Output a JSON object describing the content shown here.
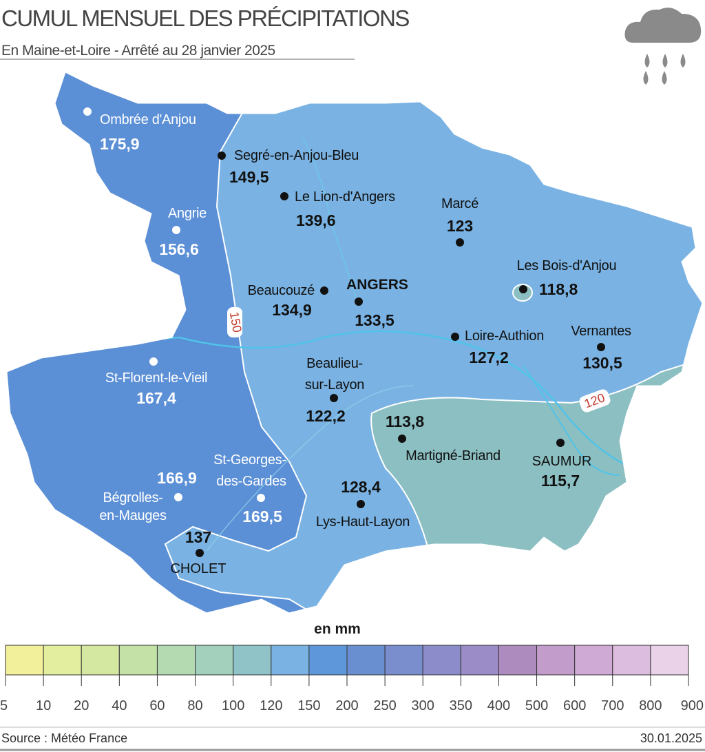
{
  "header": {
    "title": "CUMUL MENSUEL DES PRÉCIPITATIONS",
    "subtitle": "En Maine-et-Loire - Arrêté au 28 janvier 2025"
  },
  "stations": [
    {
      "label_lines": [
        "Ombrée d'Anjou"
      ],
      "value": "175,9"
    },
    {
      "label_lines": [
        "Segré-en-Anjou-Bleu"
      ],
      "value": "149,5"
    },
    {
      "label_lines": [
        "Le Lion-d'Angers"
      ],
      "value": "139,6"
    },
    {
      "label_lines": [
        "Marcé"
      ],
      "value": "123"
    },
    {
      "label_lines": [
        "Angrie"
      ],
      "value": "156,6"
    },
    {
      "label_lines": [
        "Beaucouzé"
      ],
      "value": "134,9"
    },
    {
      "label_lines": [
        "ANGERS"
      ],
      "value": "133,5"
    },
    {
      "label_lines": [
        "Les Bois-d'Anjou"
      ],
      "value": "118,8"
    },
    {
      "label_lines": [
        "Loire-Authion"
      ],
      "value": "127,2"
    },
    {
      "label_lines": [
        "Vernantes"
      ],
      "value": "130,5"
    },
    {
      "label_lines": [
        "St-Florent-le-Vieil"
      ],
      "value": "167,4"
    },
    {
      "label_lines": [
        "Beaulieu-",
        "sur-Layon"
      ],
      "value": "122,2"
    },
    {
      "label_lines": [
        "Martigné-Briand"
      ],
      "value": "113,8"
    },
    {
      "label_lines": [
        "SAUMUR"
      ],
      "value": "115,7"
    },
    {
      "label_lines": [
        "St-Georges-",
        "des-Gardes"
      ],
      "value": "169,5"
    },
    {
      "label_lines": [
        "Bégrolles-",
        "en-Mauges"
      ],
      "value": "166,9"
    },
    {
      "label_lines": [
        "Lys-Haut-Layon"
      ],
      "value": "128,4"
    },
    {
      "label_lines": [
        "CHOLET"
      ],
      "value": "137"
    }
  ],
  "isolines": [
    "150",
    "120"
  ],
  "legend": {
    "unit": "en mm",
    "ticks": [
      5,
      10,
      20,
      40,
      60,
      80,
      100,
      120,
      150,
      200,
      250,
      300,
      350,
      400,
      500,
      600,
      700,
      800,
      900
    ],
    "colors": [
      "#f3f09c",
      "#e4ee9f",
      "#d4e8a2",
      "#c4e2a7",
      "#b3dab0",
      "#a2d0bd",
      "#8fc3c8",
      "#7ab3e3",
      "#5f97db",
      "#6a8fd0",
      "#7a8dcc",
      "#8d8ccb",
      "#9b8bc6",
      "#ad8bbf",
      "#c29ccb",
      "#cfaad4",
      "#dcbde0",
      "#ead2e8"
    ]
  },
  "footer": {
    "source": "Source : Météo France",
    "date": "30.01.2025"
  }
}
